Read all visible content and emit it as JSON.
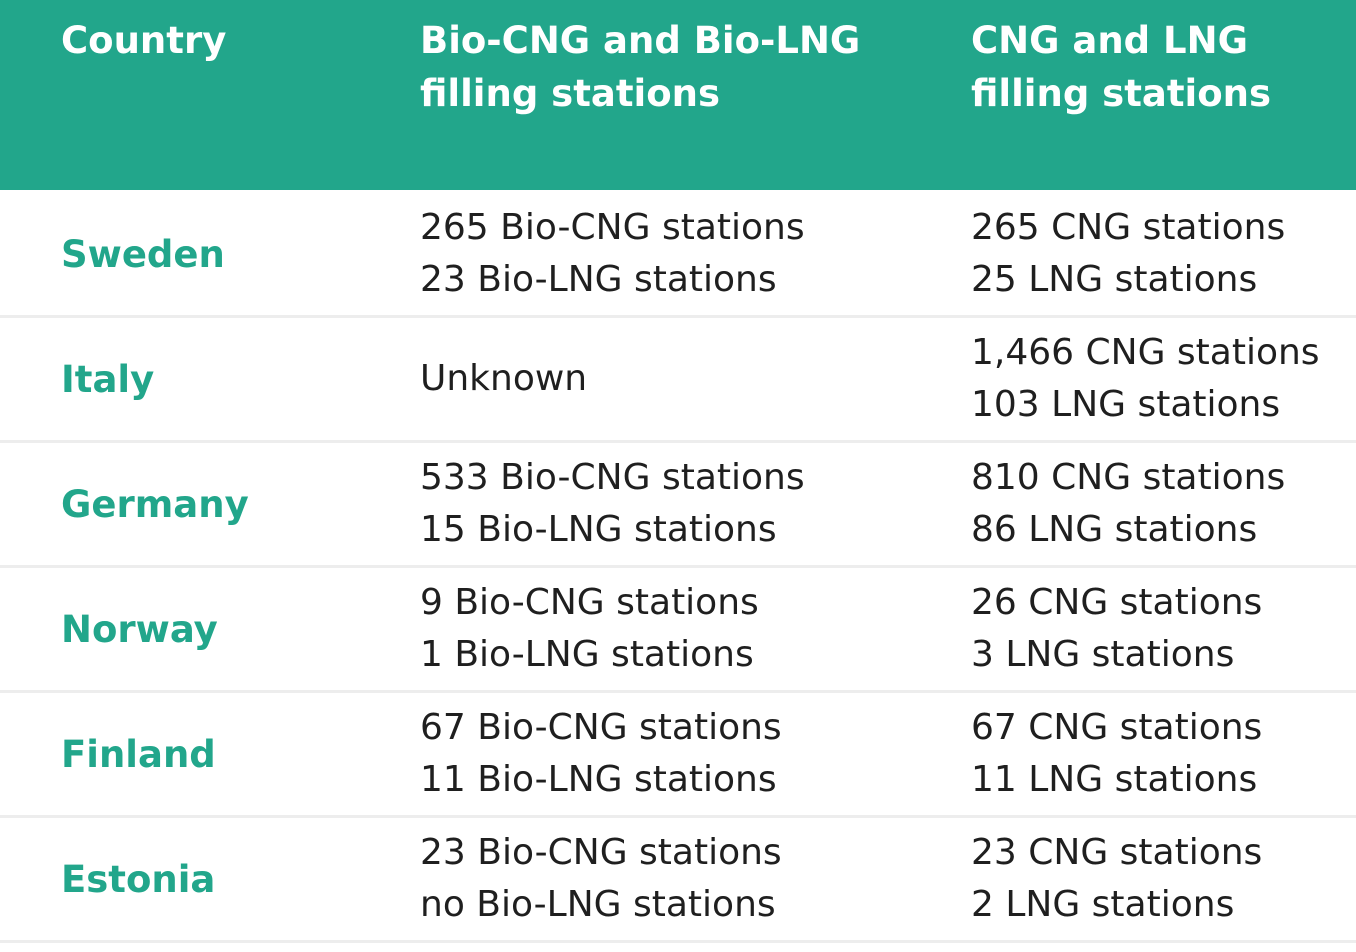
{
  "header": {
    "country": "Country",
    "bio_line1": "Bio-CNG and Bio-LNG",
    "bio_line2": "filling stations",
    "fossil_line1": "CNG and LNG",
    "fossil_line2": "filling stations"
  },
  "rows": [
    {
      "country": "Sweden",
      "bio": [
        "265 Bio-CNG stations",
        "23 Bio-LNG stations"
      ],
      "fossil": [
        "265 CNG stations",
        "25 LNG stations"
      ]
    },
    {
      "country": "Italy",
      "bio": [
        "Unknown"
      ],
      "fossil": [
        "1,466 CNG stations",
        "103 LNG stations"
      ]
    },
    {
      "country": "Germany",
      "bio": [
        "533 Bio-CNG stations",
        "15 Bio-LNG stations"
      ],
      "fossil": [
        "810 CNG stations",
        "86 LNG stations"
      ]
    },
    {
      "country": "Norway",
      "bio": [
        "9 Bio-CNG stations",
        "1 Bio-LNG stations"
      ],
      "fossil": [
        "26 CNG stations",
        "3 LNG stations"
      ]
    },
    {
      "country": "Finland",
      "bio": [
        "67 Bio-CNG stations",
        "11 Bio-LNG stations"
      ],
      "fossil": [
        "67 CNG stations",
        "11 LNG stations"
      ]
    },
    {
      "country": "Estonia",
      "bio": [
        "23 Bio-CNG stations",
        "no Bio-LNG stations"
      ],
      "fossil": [
        "23 CNG stations",
        "2 LNG stations"
      ]
    }
  ],
  "colors": {
    "header_bg": "#22a68b",
    "country_text": "#22a68b",
    "body_text": "#1f1f1f",
    "divider": "#ededed"
  }
}
